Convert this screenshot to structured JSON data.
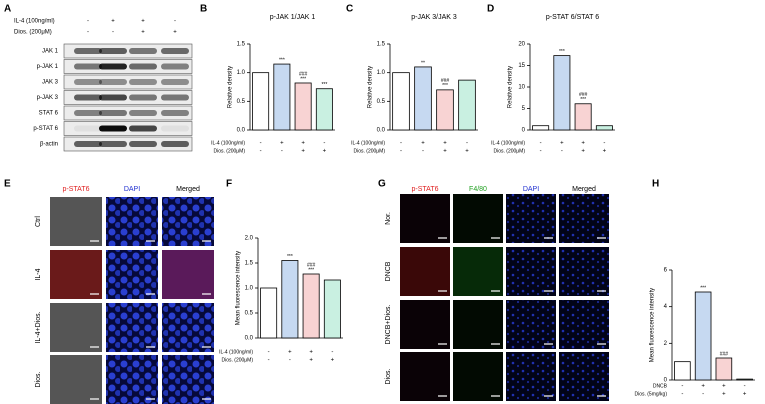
{
  "blot": {
    "letter": "A",
    "conditions": [
      {
        "label": "IL-4 (100ng/ml)",
        "signs": [
          "-",
          "+",
          "+",
          "-"
        ]
      },
      {
        "label": "Dios. (200μM)",
        "signs": [
          "-",
          "-",
          "+",
          "+"
        ]
      }
    ],
    "proteins": [
      "JAK 1",
      "p-JAK 1",
      "JAK 3",
      "p-JAK 3",
      "STAT 6",
      "p-STAT 6",
      "β-actin"
    ]
  },
  "panel_e": {
    "letter": "E",
    "columns": [
      "p-STAT6",
      "DAPI",
      "Merged"
    ],
    "rows": [
      "Ctrl",
      "IL-4",
      "IL-4+Dios.",
      "Dios."
    ]
  },
  "panel_g": {
    "letter": "G",
    "columns": [
      "p-STAT6",
      "F4/80",
      "DAPI",
      "Merged"
    ],
    "rows": [
      "Nor.",
      "DNCB",
      "DNCB+Dios.",
      "Dios."
    ]
  },
  "chart_data": [
    {
      "type": "bar",
      "letter": "B",
      "title": "p-JAK 1/JAK 1",
      "y_label": "Relative density",
      "values": [
        1.0,
        1.15,
        0.82,
        0.72
      ],
      "colors": [
        "#ffffff",
        "#c6d9f1",
        "#f8d3d3",
        "#c9f0e1"
      ],
      "annotations": [
        [],
        [
          "***"
        ],
        [
          "###",
          "***"
        ],
        [
          "***"
        ]
      ],
      "conditions": [
        {
          "label": "IL-4 (100ng/ml)",
          "signs": [
            "-",
            "+",
            "+",
            "-"
          ]
        },
        {
          "label": "Dios. (200μM)",
          "signs": [
            "-",
            "-",
            "+",
            "+"
          ]
        }
      ],
      "ylim": [
        0,
        1.5
      ],
      "yticks": [
        {
          "value": 0,
          "label": "0.0"
        },
        {
          "value": 0.5,
          "label": "0.5"
        },
        {
          "value": 1,
          "label": "1.0"
        },
        {
          "value": 1.5,
          "label": "1.5"
        }
      ]
    },
    {
      "type": "bar",
      "letter": "C",
      "title": "p-JAK 3/JAK 3",
      "y_label": "Relative density",
      "values": [
        1.0,
        1.1,
        0.7,
        0.87
      ],
      "colors": [
        "#ffffff",
        "#c6d9f1",
        "#f8d3d3",
        "#c9f0e1"
      ],
      "annotations": [
        [],
        [
          "**"
        ],
        [
          "###",
          "***"
        ],
        []
      ],
      "conditions": [
        {
          "label": "IL-4 (100ng/ml)",
          "signs": [
            "-",
            "+",
            "+",
            "-"
          ]
        },
        {
          "label": "Dios. (200μM)",
          "signs": [
            "-",
            "-",
            "+",
            "+"
          ]
        }
      ],
      "ylim": [
        0,
        1.5
      ],
      "yticks": [
        {
          "value": 0,
          "label": "0.0"
        },
        {
          "value": 0.5,
          "label": "0.5"
        },
        {
          "value": 1,
          "label": "1.0"
        },
        {
          "value": 1.5,
          "label": "1.5"
        }
      ]
    },
    {
      "type": "bar",
      "letter": "D",
      "title": "p-STAT 6/STAT 6",
      "y_label": "Relative density",
      "values": [
        1.0,
        17.3,
        6.1,
        1.0
      ],
      "colors": [
        "#ffffff",
        "#c6d9f1",
        "#f8d3d3",
        "#c9f0e1"
      ],
      "annotations": [
        [],
        [
          "***"
        ],
        [
          "###",
          "***"
        ],
        []
      ],
      "conditions": [
        {
          "label": "IL-4 (100ng/ml)",
          "signs": [
            "-",
            "+",
            "+",
            "-"
          ]
        },
        {
          "label": "Dios. (200μM)",
          "signs": [
            "-",
            "-",
            "+",
            "+"
          ]
        }
      ],
      "ylim": [
        0,
        20
      ],
      "yticks": [
        0,
        5,
        10,
        15,
        20
      ]
    },
    {
      "type": "bar",
      "letter": "F",
      "y_label": "Mean fluorescence intensity",
      "values": [
        1.0,
        1.55,
        1.28,
        1.16
      ],
      "colors": [
        "#ffffff",
        "#c6d9f1",
        "#f8d3d3",
        "#c9f0e1"
      ],
      "annotations": [
        [],
        [
          "***"
        ],
        [
          "###",
          "***"
        ],
        []
      ],
      "conditions": [
        {
          "label": "IL-4 (100ng/ml)",
          "signs": [
            "-",
            "+",
            "+",
            "-"
          ]
        },
        {
          "label": "Dios. (200μM)",
          "signs": [
            "-",
            "-",
            "+",
            "+"
          ]
        }
      ],
      "ylim": [
        0,
        2
      ],
      "yticks": [
        {
          "value": 0,
          "label": "0.0"
        },
        {
          "value": 0.5,
          "label": "0.5"
        },
        {
          "value": 1,
          "label": "1.0"
        },
        {
          "value": 1.5,
          "label": "1.5"
        },
        {
          "value": 2,
          "label": "2.0"
        }
      ]
    },
    {
      "type": "bar",
      "letter": "H",
      "y_label": "Mean fluorescence intensity",
      "values": [
        1.0,
        4.8,
        1.2,
        0.05
      ],
      "colors": [
        "#ffffff",
        "#c6d9f1",
        "#f8d3d3",
        "#c9f0e1"
      ],
      "annotations": [
        [],
        [
          "***"
        ],
        [
          "###"
        ],
        []
      ],
      "conditions": [
        {
          "label": "DNCB",
          "signs": [
            "-",
            "+",
            "+",
            "-"
          ]
        },
        {
          "label": "Dios. (5mg/kg)",
          "signs": [
            "-",
            "-",
            "+",
            "+"
          ]
        }
      ],
      "ylim": [
        0,
        6
      ],
      "yticks": [
        0,
        2,
        4,
        6
      ]
    }
  ]
}
